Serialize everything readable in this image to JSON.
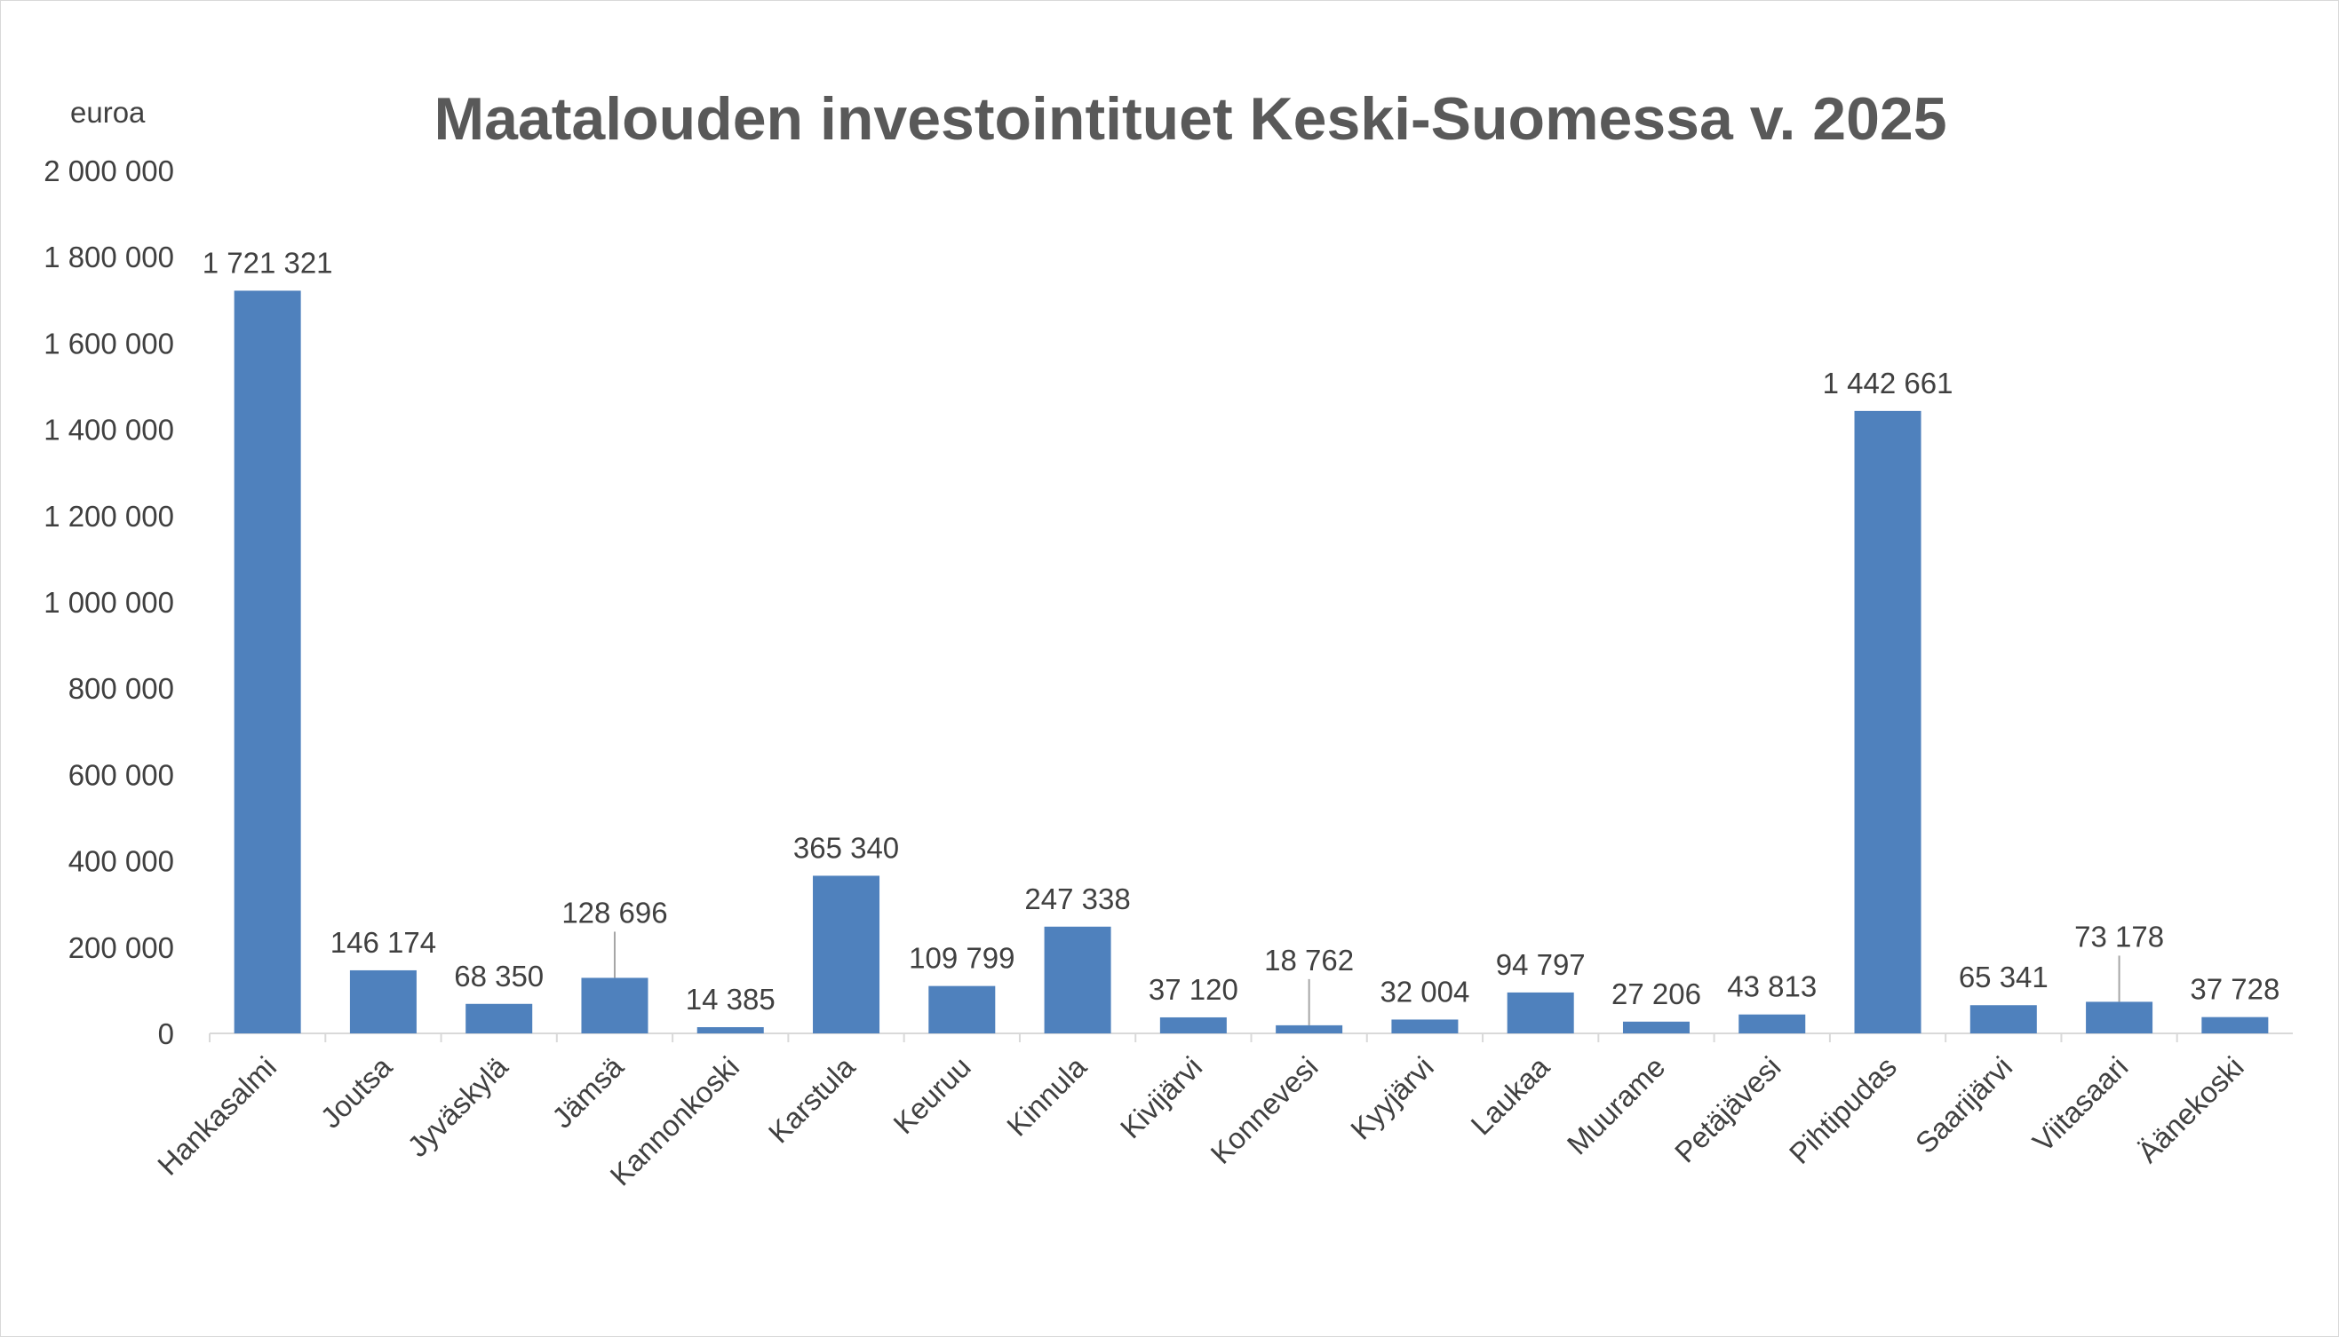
{
  "chart_data": {
    "type": "bar",
    "title": "Maatalouden investointituet Keski-Suomessa v. 2025",
    "ylabel": "euroa",
    "xlabel": "",
    "ylim": [
      0,
      2000000
    ],
    "yticks": [
      0,
      200000,
      400000,
      600000,
      800000,
      1000000,
      1200000,
      1400000,
      1600000,
      1800000,
      2000000
    ],
    "ytick_labels": [
      "0",
      "200 000",
      "400 000",
      "600 000",
      "800 000",
      "1 000 000",
      "1 200 000",
      "1 400 000",
      "1 600 000",
      "1 800 000",
      "2 000 000"
    ],
    "grid": false,
    "legend": "none",
    "bar_color": "#4f81bd",
    "categories": [
      "Hankasalmi",
      "Joutsa",
      "Jyväskylä",
      "Jämsä",
      "Kannonkoski",
      "Karstula",
      "Keuruu",
      "Kinnula",
      "Kivijärvi",
      "Konnevesi",
      "Kyyjärvi",
      "Laukaa",
      "Muurame",
      "Petäjävesi",
      "Pihtipudas",
      "Saarijärvi",
      "Viitasaari",
      "Äänekoski"
    ],
    "values": [
      1721321,
      146174,
      68350,
      128696,
      14385,
      365340,
      109799,
      247338,
      37120,
      18762,
      32004,
      94797,
      27206,
      43813,
      1442661,
      65341,
      73178,
      37728
    ],
    "value_labels": [
      "1 721 321",
      "146 174",
      "68 350",
      "128 696",
      "14 385",
      "365 340",
      "109 799",
      "247 338",
      "37 120",
      "18 762",
      "32 004",
      "94 797",
      "27 206",
      "43 813",
      "1 442 661",
      "65 341",
      "73 178",
      "37 728"
    ]
  }
}
